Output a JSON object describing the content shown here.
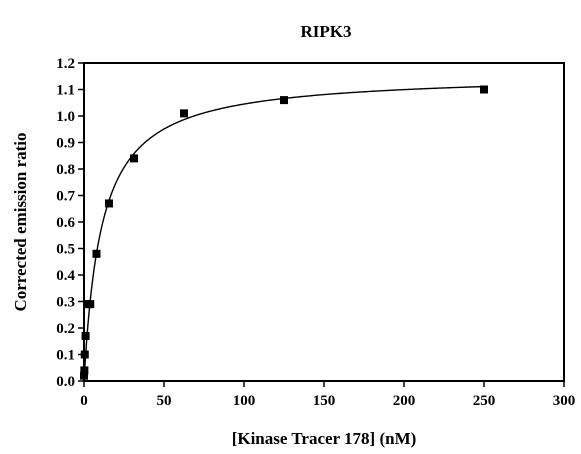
{
  "chart_data": {
    "type": "scatter",
    "title": "RIPK3",
    "xlabel": "[Kinase Tracer 178] (nM)",
    "ylabel": "Corrected emission ratio",
    "xlim": [
      0,
      300
    ],
    "ylim": [
      0,
      1.2
    ],
    "xticks": [
      0,
      50,
      100,
      150,
      200,
      250,
      300
    ],
    "xtick_labels": [
      "0",
      "50",
      "100",
      "150",
      "200",
      "250",
      "300"
    ],
    "yticks": [
      0.0,
      0.1,
      0.2,
      0.3,
      0.4,
      0.5,
      0.6,
      0.7,
      0.8,
      0.9,
      1.0,
      1.1,
      1.2
    ],
    "ytick_labels": [
      "0.0",
      "0.1",
      "0.2",
      "0.3",
      "0.4",
      "0.5",
      "0.6",
      "0.7",
      "0.8",
      "0.9",
      "1.0",
      "1.1",
      "1.2"
    ],
    "grid": false,
    "series": [
      {
        "marker": "square",
        "color": "#000000",
        "x": [
          0,
          0.24,
          0.49,
          0.98,
          1.95,
          3.9,
          7.8,
          15.6,
          31.25,
          62.5,
          125,
          250
        ],
        "y": [
          0.02,
          0.04,
          0.1,
          0.17,
          0.29,
          0.29,
          0.48,
          0.67,
          0.84,
          1.01,
          1.06,
          1.1
        ]
      }
    ],
    "fit_curve": {
      "model": "one-site binding",
      "bmax": 1.16,
      "kd": 11,
      "color": "#000000"
    }
  }
}
